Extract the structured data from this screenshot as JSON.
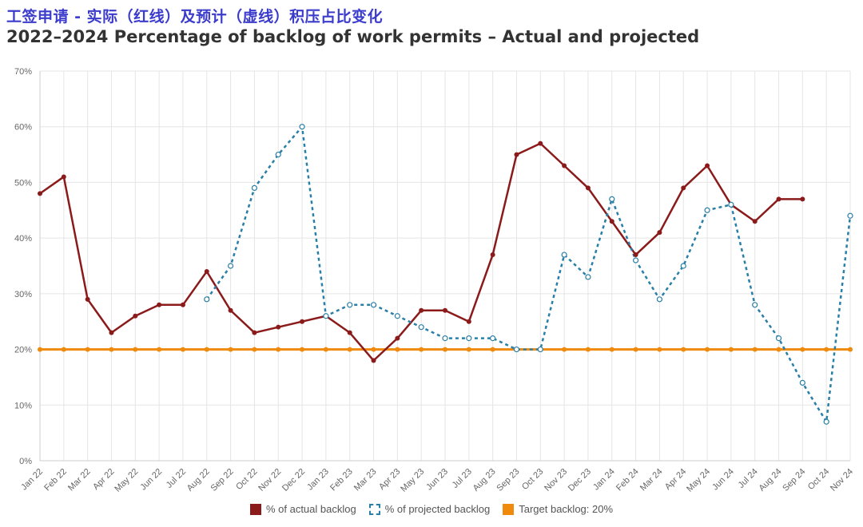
{
  "title_zh": "工签申请 - 实际（红线）及预计（虚线）积压占比变化",
  "title_en": "2022–2024 Percentage of backlog of work permits – Actual and projected",
  "colors": {
    "actual": "#8b1a1a",
    "projected": "#2a7fa6",
    "target": "#f08a0c",
    "grid": "#e5e5e5"
  },
  "chart_data": {
    "type": "line",
    "categories": [
      "Jan 22",
      "Feb 22",
      "Mar 22",
      "Apr 22",
      "May 22",
      "Jun 22",
      "Jul 22",
      "Aug 22",
      "Sep 22",
      "Oct 22",
      "Nov 22",
      "Dec 22",
      "Jan 23",
      "Feb 23",
      "Mar 23",
      "Apr 23",
      "May 23",
      "Jun 23",
      "Jul 23",
      "Aug 23",
      "Sep 23",
      "Oct 23",
      "Nov 23",
      "Dec 23",
      "Jan 24",
      "Feb 24",
      "Mar 24",
      "Apr 24",
      "May 24",
      "Jun 24",
      "Jul 24",
      "Aug 24",
      "Sep 24",
      "Oct 24",
      "Nov 24"
    ],
    "ylim": [
      0,
      70
    ],
    "yticks": [
      "0%",
      "10%",
      "20%",
      "30%",
      "40%",
      "50%",
      "60%",
      "70%"
    ],
    "grid": true,
    "legend_position": "bottom",
    "series": [
      {
        "name": "% of actual backlog",
        "style": "solid",
        "values": [
          48,
          51,
          29,
          23,
          26,
          28,
          28,
          34,
          27,
          23,
          24,
          25,
          26,
          23,
          18,
          22,
          27,
          27,
          25,
          37,
          55,
          57,
          53,
          49,
          43,
          37,
          41,
          49,
          53,
          46,
          43,
          47,
          47,
          null,
          null
        ]
      },
      {
        "name": "% of projected backlog",
        "style": "dashed",
        "values": [
          null,
          null,
          null,
          null,
          null,
          null,
          null,
          29,
          35,
          49,
          55,
          60,
          26,
          28,
          28,
          26,
          24,
          22,
          22,
          22,
          20,
          20,
          37,
          33,
          47,
          36,
          29,
          35,
          45,
          46,
          28,
          22,
          14,
          7,
          44
        ]
      },
      {
        "name": "Target backlog: 20%",
        "style": "solid",
        "values": [
          20,
          20,
          20,
          20,
          20,
          20,
          20,
          20,
          20,
          20,
          20,
          20,
          20,
          20,
          20,
          20,
          20,
          20,
          20,
          20,
          20,
          20,
          20,
          20,
          20,
          20,
          20,
          20,
          20,
          20,
          20,
          20,
          20,
          20,
          20
        ]
      }
    ]
  }
}
